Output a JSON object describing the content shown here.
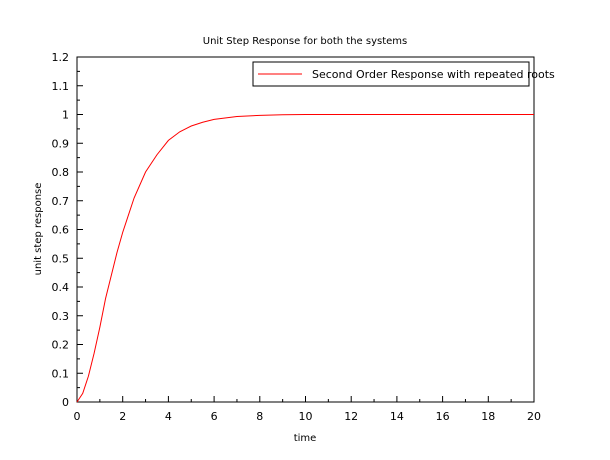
{
  "chart_data": {
    "type": "line",
    "title": "Unit Step Response for both the systems",
    "xlabel": "time",
    "ylabel": "unit step response",
    "xlim": [
      0,
      20
    ],
    "ylim": [
      0,
      1.2
    ],
    "x_ticks": [
      "0",
      "2",
      "4",
      "6",
      "8",
      "10",
      "12",
      "14",
      "16",
      "18",
      "20"
    ],
    "y_ticks": [
      "0",
      "0.1",
      "0.2",
      "0.3",
      "0.4",
      "0.5",
      "0.6",
      "0.7",
      "0.8",
      "0.9",
      "1",
      "1.1",
      "1.2"
    ],
    "grid": false,
    "legend_position": "top-right",
    "series": [
      {
        "name": "Second Order Response with repeated roots",
        "color": "#ff0000",
        "x": [
          0,
          0.25,
          0.5,
          0.75,
          1,
          1.25,
          1.5,
          1.75,
          2,
          2.5,
          3,
          3.5,
          4,
          4.5,
          5,
          5.5,
          6,
          7,
          8,
          9,
          10,
          12,
          14,
          16,
          18,
          20
        ],
        "y": [
          0,
          0.03,
          0.09,
          0.17,
          0.26,
          0.36,
          0.44,
          0.52,
          0.59,
          0.71,
          0.8,
          0.86,
          0.91,
          0.94,
          0.96,
          0.973,
          0.983,
          0.993,
          0.997,
          0.999,
          1.0,
          1.0,
          1.0,
          1.0,
          1.0,
          1.0
        ]
      }
    ]
  }
}
